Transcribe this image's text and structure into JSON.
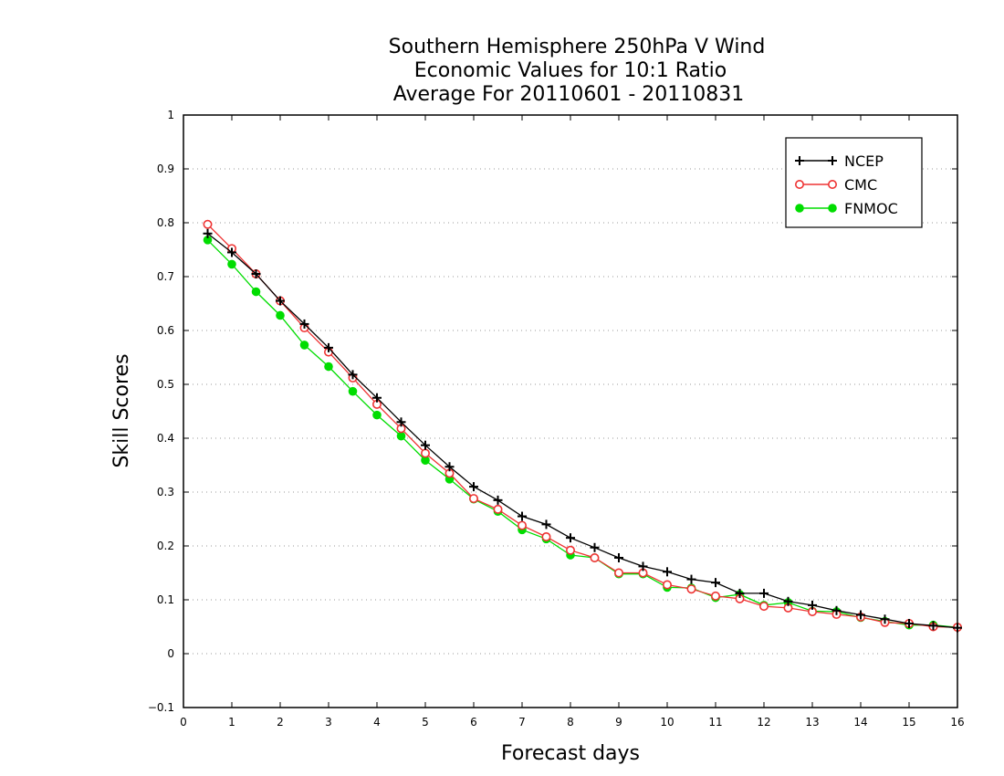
{
  "chart_data": {
    "type": "line",
    "title": [
      "Southern Hemisphere 250hPa V Wind",
      "Economic Values for 10:1 Ratio",
      "Average For 20110601 - 20110831"
    ],
    "xlabel": "Forecast days",
    "ylabel": "Skill Scores",
    "xlim": [
      0,
      16
    ],
    "ylim": [
      -0.1,
      1
    ],
    "xticks": [
      0,
      1,
      2,
      3,
      4,
      5,
      6,
      7,
      8,
      9,
      10,
      11,
      12,
      13,
      14,
      15,
      16
    ],
    "yticks": [
      -0.1,
      0,
      0.1,
      0.2,
      0.3,
      0.4,
      0.5,
      0.6,
      0.7,
      0.8,
      0.9,
      1
    ],
    "ytick_labels": [
      "−0.1",
      "0",
      "0.1",
      "0.2",
      "0.3",
      "0.4",
      "0.5",
      "0.6",
      "0.7",
      "0.8",
      "0.9",
      "1"
    ],
    "grid": "horizontal dotted",
    "legend_position": "top-right",
    "x": [
      0.5,
      1,
      1.5,
      2,
      2.5,
      3,
      3.5,
      4,
      4.5,
      5,
      5.5,
      6,
      6.5,
      7,
      7.5,
      8,
      8.5,
      9,
      9.5,
      10,
      10.5,
      11,
      11.5,
      12,
      12.5,
      13,
      13.5,
      14,
      14.5,
      15,
      15.5,
      16
    ],
    "series": [
      {
        "name": "NCEP",
        "color": "#000000",
        "marker": "plus",
        "values": [
          0.78,
          0.745,
          0.705,
          0.655,
          0.612,
          0.568,
          0.518,
          0.475,
          0.43,
          0.387,
          0.347,
          0.31,
          0.285,
          0.255,
          0.24,
          0.215,
          0.197,
          0.178,
          0.162,
          0.152,
          0.138,
          0.132,
          0.112,
          0.112,
          0.097,
          0.09,
          0.08,
          0.072,
          0.064,
          0.056,
          0.052,
          0.048
        ]
      },
      {
        "name": "CMC",
        "color": "#ee3333",
        "marker": "open-circle",
        "values": [
          0.797,
          0.752,
          0.705,
          0.655,
          0.605,
          0.56,
          0.512,
          0.463,
          0.418,
          0.372,
          0.335,
          0.288,
          0.268,
          0.238,
          0.217,
          0.192,
          0.178,
          0.15,
          0.15,
          0.128,
          0.12,
          0.107,
          0.102,
          0.088,
          0.085,
          0.078,
          0.073,
          0.068,
          0.058,
          0.056,
          0.05,
          0.049
        ]
      },
      {
        "name": "FNMOC",
        "color": "#00dd00",
        "marker": "filled-circle",
        "values": [
          0.768,
          0.723,
          0.672,
          0.628,
          0.573,
          0.533,
          0.487,
          0.443,
          0.404,
          0.359,
          0.324,
          0.287,
          0.264,
          0.23,
          0.213,
          0.183,
          0.178,
          0.148,
          0.148,
          0.123,
          0.122,
          0.104,
          0.11,
          0.09,
          0.095,
          0.079,
          0.078,
          0.067,
          0.06,
          0.053,
          0.053,
          0.049
        ]
      }
    ]
  }
}
